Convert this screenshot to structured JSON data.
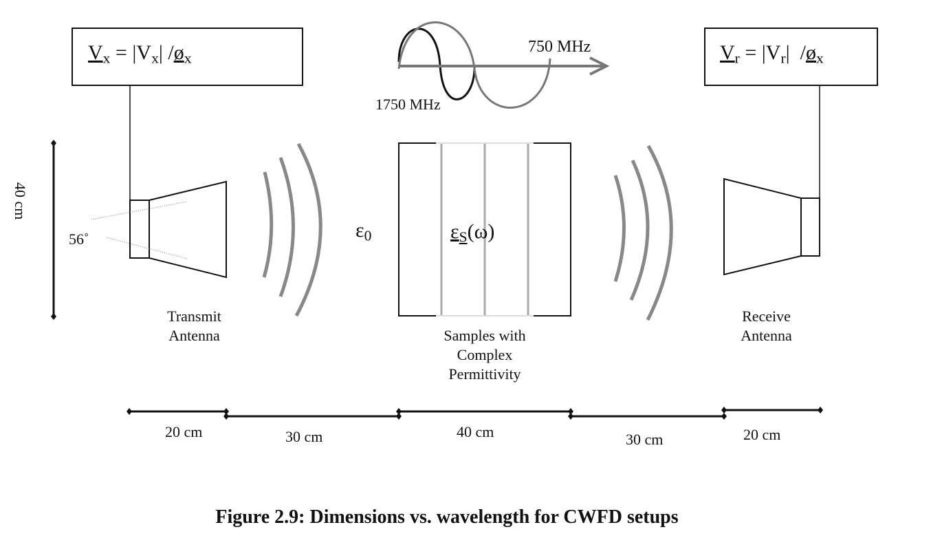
{
  "tx_box": {
    "v": "V",
    "x": "x",
    "eq": " = |V",
    "x2": "x",
    "mid": "| /",
    "phi": "ø",
    "x3": "x"
  },
  "rx_box": {
    "v": "V",
    "r": "r",
    "eq": " = |V",
    "r2": "r",
    "mid": "|  /",
    "phi": "ø",
    "x3": "x"
  },
  "waves": {
    "freq_high": "1750 MHz",
    "freq_low": "750 MHz"
  },
  "vertical_dim": "40 cm",
  "beam_angle": "56˚",
  "epsilon_free": {
    "sym": "ε",
    "sub": "0"
  },
  "epsilon_sample": {
    "sym": "ε",
    "sub": "S",
    "arg": "(ω)"
  },
  "transmit_label": [
    "Transmit",
    "Antenna"
  ],
  "receive_label": [
    "Receive",
    "Antenna"
  ],
  "sample_label": [
    "Samples with",
    "Complex",
    "Permittivity"
  ],
  "dimensions": [
    "20 cm",
    "30 cm",
    "40 cm",
    "30 cm",
    "20 cm"
  ],
  "caption": "Figure 2.9: Dimensions vs. wavelength for CWFD setups",
  "colors": {
    "line": "#111111",
    "wave": "#777777",
    "sample_stripe": "#aaaaaa"
  }
}
